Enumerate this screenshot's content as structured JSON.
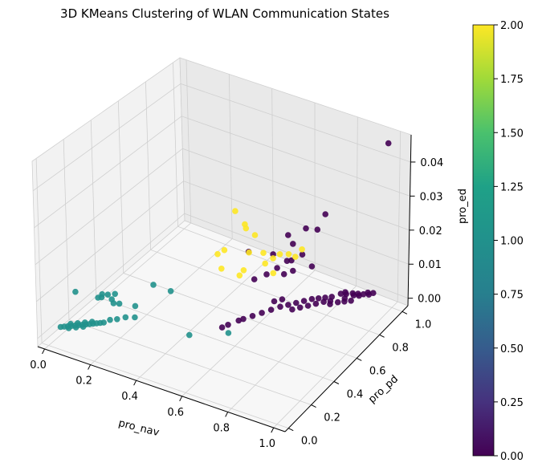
{
  "chart_data": {
    "type": "scatter",
    "title": "3D KMeans Clustering of WLAN Communication States",
    "xlabel": "pro_nav",
    "ylabel": "pro_pd",
    "zlabel": "pro_ed",
    "xticks": [
      "0.0",
      "0.2",
      "0.4",
      "0.6",
      "0.8",
      "1.0"
    ],
    "yticks": [
      "0.0",
      "0.2",
      "0.4",
      "0.6",
      "0.8",
      "1.0"
    ],
    "zticks": [
      "0.00",
      "0.01",
      "0.02",
      "0.03",
      "0.04"
    ],
    "colorbar": {
      "colormap": "viridis",
      "range": [
        0,
        2
      ],
      "ticks": [
        "0.00",
        "0.25",
        "0.50",
        "0.75",
        "1.00",
        "1.25",
        "1.50",
        "1.75",
        "2.00"
      ]
    },
    "grid": true,
    "colors": {
      "cluster_0": "#440154",
      "cluster_1": "#21918c",
      "cluster_2": "#fde725"
    },
    "series": [
      {
        "cluster": 0,
        "points": [
          [
            0.98,
            0.99,
            0.046
          ],
          [
            0.78,
            0.83,
            0.026
          ],
          [
            0.76,
            0.8,
            0.022
          ],
          [
            0.73,
            0.76,
            0.023
          ],
          [
            0.68,
            0.74,
            0.018
          ],
          [
            0.67,
            0.72,
            0.021
          ],
          [
            0.64,
            0.65,
            0.017
          ],
          [
            0.71,
            0.64,
            0.017
          ],
          [
            0.66,
            0.76,
            0.012
          ],
          [
            0.64,
            0.68,
            0.012
          ],
          [
            0.55,
            0.61,
            0.017
          ],
          [
            0.58,
            0.6,
            0.01
          ],
          [
            0.59,
            0.68,
            0.009
          ],
          [
            0.7,
            0.78,
            0.014
          ],
          [
            0.75,
            0.77,
            0.012
          ],
          [
            0.69,
            0.72,
            0.011
          ],
          [
            0.66,
            0.7,
            0.01
          ],
          [
            0.84,
            0.95,
            0.0
          ],
          [
            0.86,
            0.96,
            0.0
          ],
          [
            0.88,
            0.97,
            0.0
          ],
          [
            0.9,
            0.98,
            0.0
          ],
          [
            0.82,
            0.93,
            0.0
          ],
          [
            0.8,
            0.92,
            0.0
          ],
          [
            0.85,
            0.94,
            0.0
          ],
          [
            0.87,
            0.95,
            0.0
          ],
          [
            0.83,
            0.9,
            0.0
          ],
          [
            0.81,
            0.94,
            0.0
          ],
          [
            0.89,
            0.99,
            0.0
          ],
          [
            0.91,
            1.0,
            0.0
          ],
          [
            0.78,
            0.88,
            0.0
          ],
          [
            0.76,
            0.86,
            0.0
          ],
          [
            0.74,
            0.84,
            0.0
          ],
          [
            0.72,
            0.82,
            0.0
          ],
          [
            0.7,
            0.79,
            0.0
          ],
          [
            0.79,
            0.85,
            0.0
          ],
          [
            0.77,
            0.83,
            0.0
          ],
          [
            0.75,
            0.8,
            0.0
          ],
          [
            0.73,
            0.77,
            0.0
          ],
          [
            0.71,
            0.74,
            0.0
          ],
          [
            0.69,
            0.71,
            0.0
          ],
          [
            0.86,
            0.9,
            0.0
          ],
          [
            0.84,
            0.88,
            0.0
          ],
          [
            0.82,
            0.86,
            0.0
          ],
          [
            0.8,
            0.83,
            0.0
          ],
          [
            0.68,
            0.76,
            0.0
          ],
          [
            0.66,
            0.73,
            0.0
          ],
          [
            0.64,
            0.7,
            0.0
          ],
          [
            0.62,
            0.66,
            0.0
          ],
          [
            0.6,
            0.62,
            0.0
          ],
          [
            0.58,
            0.58,
            0.0
          ],
          [
            0.56,
            0.54,
            0.0
          ],
          [
            0.55,
            0.52,
            0.0
          ],
          [
            0.53,
            0.47,
            0.0
          ],
          [
            0.52,
            0.44,
            0.0
          ],
          [
            0.6,
            0.72,
            0.0
          ],
          [
            0.62,
            0.75,
            0.0
          ]
        ]
      },
      {
        "cluster": 1,
        "points": [
          [
            0.0,
            0.09,
            0.0
          ],
          [
            0.01,
            0.1,
            0.0
          ],
          [
            0.02,
            0.11,
            0.0
          ],
          [
            0.03,
            0.12,
            0.0
          ],
          [
            0.04,
            0.13,
            0.0
          ],
          [
            0.05,
            0.14,
            0.0
          ],
          [
            0.06,
            0.15,
            0.0
          ],
          [
            0.07,
            0.16,
            0.0
          ],
          [
            0.08,
            0.17,
            0.0
          ],
          [
            0.09,
            0.18,
            0.0
          ],
          [
            0.1,
            0.19,
            0.0
          ],
          [
            0.11,
            0.2,
            0.0
          ],
          [
            0.12,
            0.21,
            0.0
          ],
          [
            0.02,
            0.13,
            0.0
          ],
          [
            0.04,
            0.15,
            0.0
          ],
          [
            0.06,
            0.17,
            0.0
          ],
          [
            0.08,
            0.19,
            0.0
          ],
          [
            0.03,
            0.1,
            0.0
          ],
          [
            0.05,
            0.12,
            0.0
          ],
          [
            0.07,
            0.14,
            0.0
          ],
          [
            0.13,
            0.24,
            0.0
          ],
          [
            0.15,
            0.26,
            0.0
          ],
          [
            0.17,
            0.29,
            0.0
          ],
          [
            0.2,
            0.31,
            0.0
          ],
          [
            0.16,
            0.38,
            0.0
          ],
          [
            0.1,
            0.36,
            0.0
          ],
          [
            0.08,
            0.35,
            0.0
          ],
          [
            0.06,
            0.37,
            0.0
          ],
          [
            0.02,
            0.36,
            0.0
          ],
          [
            0.01,
            0.35,
            0.0
          ],
          [
            0.01,
            0.38,
            0.0
          ],
          [
            0.03,
            0.39,
            0.0
          ],
          [
            0.05,
            0.41,
            0.0
          ],
          [
            0.14,
            0.55,
            0.0
          ],
          [
            0.22,
            0.55,
            0.0
          ],
          [
            0.44,
            0.32,
            0.0
          ],
          [
            0.56,
            0.42,
            0.0
          ],
          [
            0.04,
            0.14,
            0.009
          ]
        ]
      },
      {
        "cluster": 2,
        "points": [
          [
            0.3,
            0.92,
            0.013
          ],
          [
            0.37,
            0.88,
            0.012
          ],
          [
            0.33,
            0.76,
            0.002
          ],
          [
            0.41,
            0.8,
            0.002
          ],
          [
            0.4,
            0.86,
            0.005
          ],
          [
            0.45,
            0.89,
            0.005
          ],
          [
            0.49,
            0.9,
            0.004
          ],
          [
            0.51,
            0.92,
            0.005
          ],
          [
            0.54,
            0.94,
            0.005
          ],
          [
            0.56,
            0.96,
            0.004
          ],
          [
            0.47,
            0.87,
            0.003
          ],
          [
            0.52,
            0.85,
            0.002
          ],
          [
            0.58,
            0.98,
            0.006
          ],
          [
            0.38,
            0.94,
            0.007
          ],
          [
            0.35,
            0.92,
            0.009
          ],
          [
            0.27,
            0.88,
            0.002
          ],
          [
            0.25,
            0.86,
            0.001
          ],
          [
            0.39,
            0.8,
            0.0
          ]
        ]
      }
    ]
  }
}
